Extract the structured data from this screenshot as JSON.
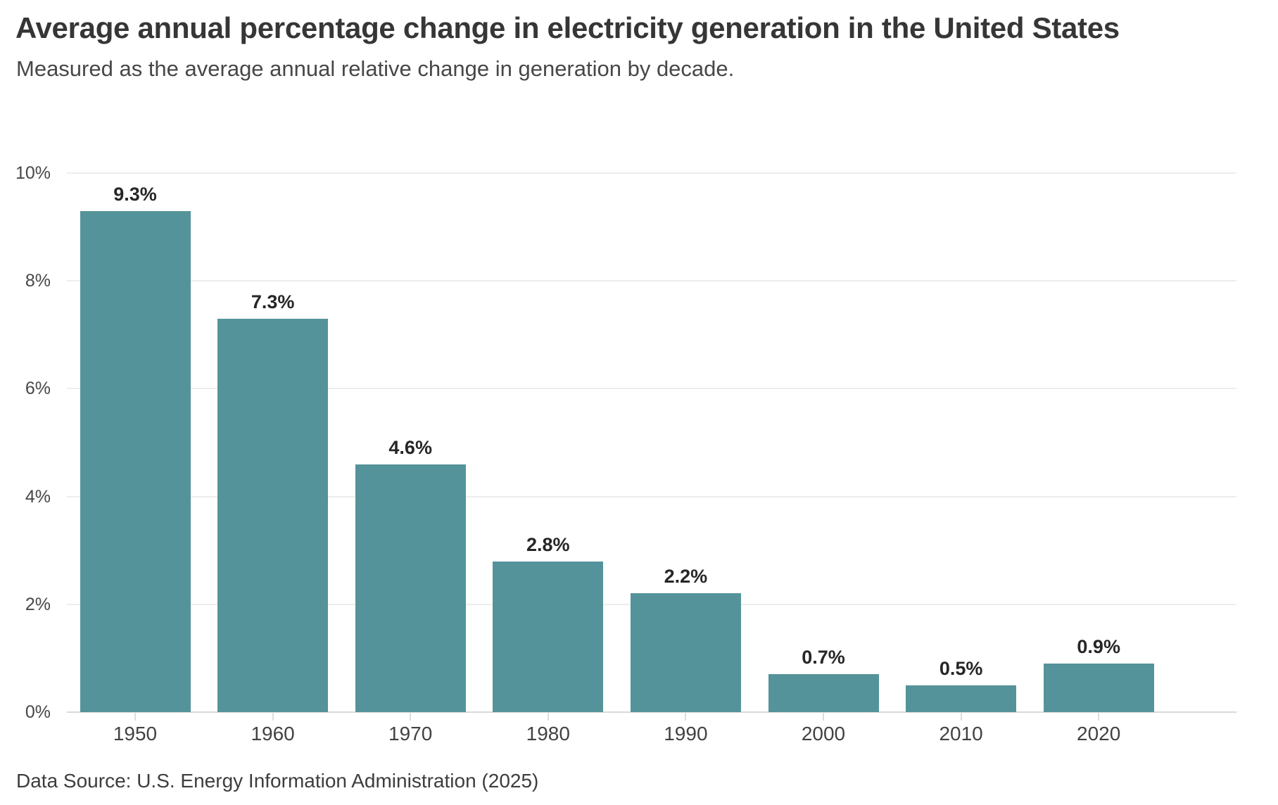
{
  "header": {
    "title": "Average annual percentage change in electricity generation in the United States",
    "subtitle": "Measured as the average annual relative change in generation by decade."
  },
  "chart_data": {
    "type": "bar",
    "title": "Average annual percentage change in electricity generation in the United States",
    "subtitle": "Measured as the average annual relative change in generation by decade.",
    "categories": [
      "1950",
      "1960",
      "1970",
      "1980",
      "1990",
      "2000",
      "2010",
      "2020"
    ],
    "values": [
      9.3,
      7.3,
      4.6,
      2.8,
      2.2,
      0.7,
      0.5,
      0.9
    ],
    "value_labels": [
      "9.3%",
      "7.3%",
      "4.6%",
      "2.8%",
      "2.2%",
      "0.7%",
      "0.5%",
      "0.9%"
    ],
    "xlabel": "",
    "ylabel": "",
    "ylim": [
      0,
      10
    ],
    "yticks": [
      0,
      2,
      4,
      6,
      8,
      10
    ],
    "ytick_labels": [
      "0%",
      "2%",
      "4%",
      "6%",
      "8%",
      "10%"
    ],
    "grid": true,
    "legend": "none",
    "bar_color": "#55939a"
  },
  "footer": {
    "source": "Data Source: U.S. Energy Information Administration (2025)"
  },
  "colors": {
    "background": "#ffffff",
    "bar": "#55939a",
    "title_text": "#363636",
    "subtitle_text": "#474747",
    "axis_label_text": "#474747",
    "value_label_text": "#262626",
    "gridline": "#ededed",
    "axis_line": "#d9d9d9",
    "tick_mark": "#dedede"
  }
}
